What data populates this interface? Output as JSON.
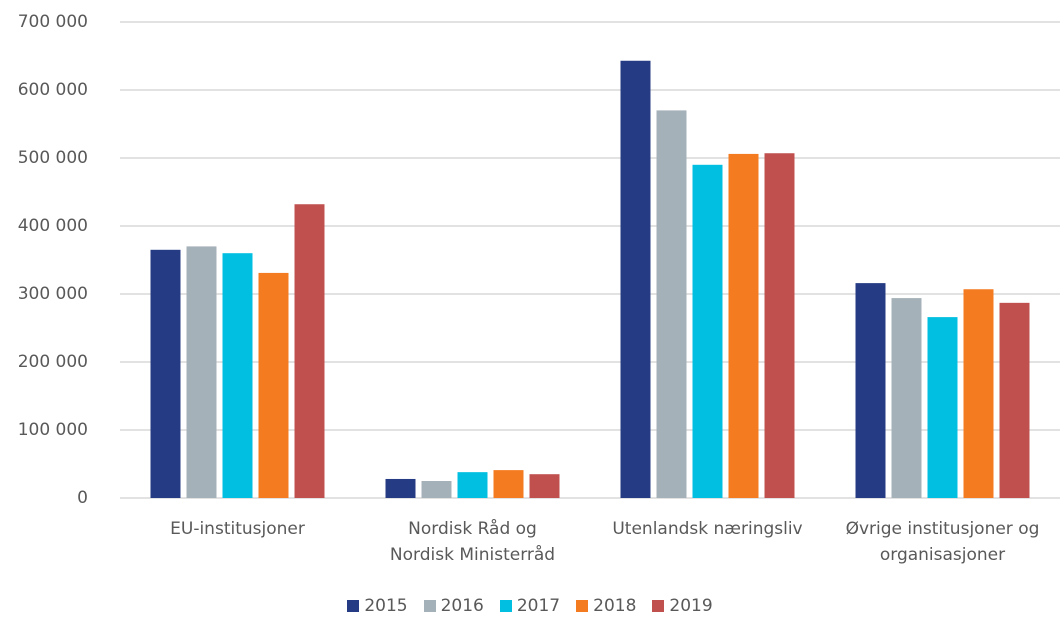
{
  "chart_data": {
    "type": "bar",
    "categories": [
      "EU-institusjoner",
      "Nordisk Råd og\nNordisk Ministerråd",
      "Utenlandsk næringsliv",
      "Øvrige institusjoner og\norganisasjoner"
    ],
    "series": [
      {
        "name": "2015",
        "color": "#253b83",
        "values": [
          365000,
          28000,
          643000,
          316000
        ]
      },
      {
        "name": "2016",
        "color": "#a5b1b9",
        "values": [
          370000,
          25000,
          570000,
          294000
        ]
      },
      {
        "name": "2017",
        "color": "#00bfe0",
        "values": [
          360000,
          38000,
          490000,
          266000
        ]
      },
      {
        "name": "2018",
        "color": "#f47b20",
        "values": [
          331000,
          41000,
          506000,
          307000
        ]
      },
      {
        "name": "2019",
        "color": "#c0504d",
        "values": [
          432000,
          35000,
          507000,
          287000
        ]
      }
    ],
    "ylim": [
      0,
      700000
    ],
    "yticks": [
      0,
      {
        "value": 100000,
        "label": "100 000"
      },
      {
        "value": 200000,
        "label": "200 000"
      },
      {
        "value": 300000,
        "label": "300 000"
      },
      {
        "value": 400000,
        "label": "400 000"
      },
      {
        "value": 500000,
        "label": "500 000"
      },
      {
        "value": 600000,
        "label": "600 000"
      },
      {
        "value": 700000,
        "label": "700 000"
      }
    ],
    "grid": true,
    "legend": "bottom"
  }
}
